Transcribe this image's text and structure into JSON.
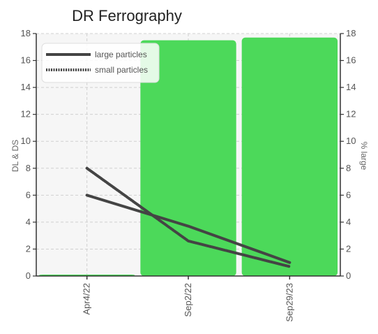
{
  "chart_data": {
    "type": "line",
    "title": "DR Ferrography",
    "ylabel": "DL & DS",
    "y2label": "% large",
    "categories": [
      "Apr4/22",
      "Sep2/22",
      "Sep29/23"
    ],
    "ylim": [
      0,
      18
    ],
    "y2lim": [
      0,
      18
    ],
    "yticks": [
      0,
      2,
      4,
      6,
      8,
      10,
      12,
      14,
      16,
      18
    ],
    "grid": true,
    "legend_position": "top-left",
    "series": [
      {
        "name": "large particles",
        "values": [
          6.0,
          3.7,
          1.0
        ],
        "style": "solid"
      },
      {
        "name": "small particles",
        "values": [
          8.0,
          2.6,
          0.7
        ],
        "style": "dashed"
      }
    ],
    "bars": {
      "axis": "% large",
      "values": [
        0,
        17.5,
        17.7
      ],
      "color": "#4cd95a"
    },
    "colors": {
      "line": "#444444",
      "bar": "#4cd95a",
      "plot_bg": "#f6f6f6"
    }
  }
}
